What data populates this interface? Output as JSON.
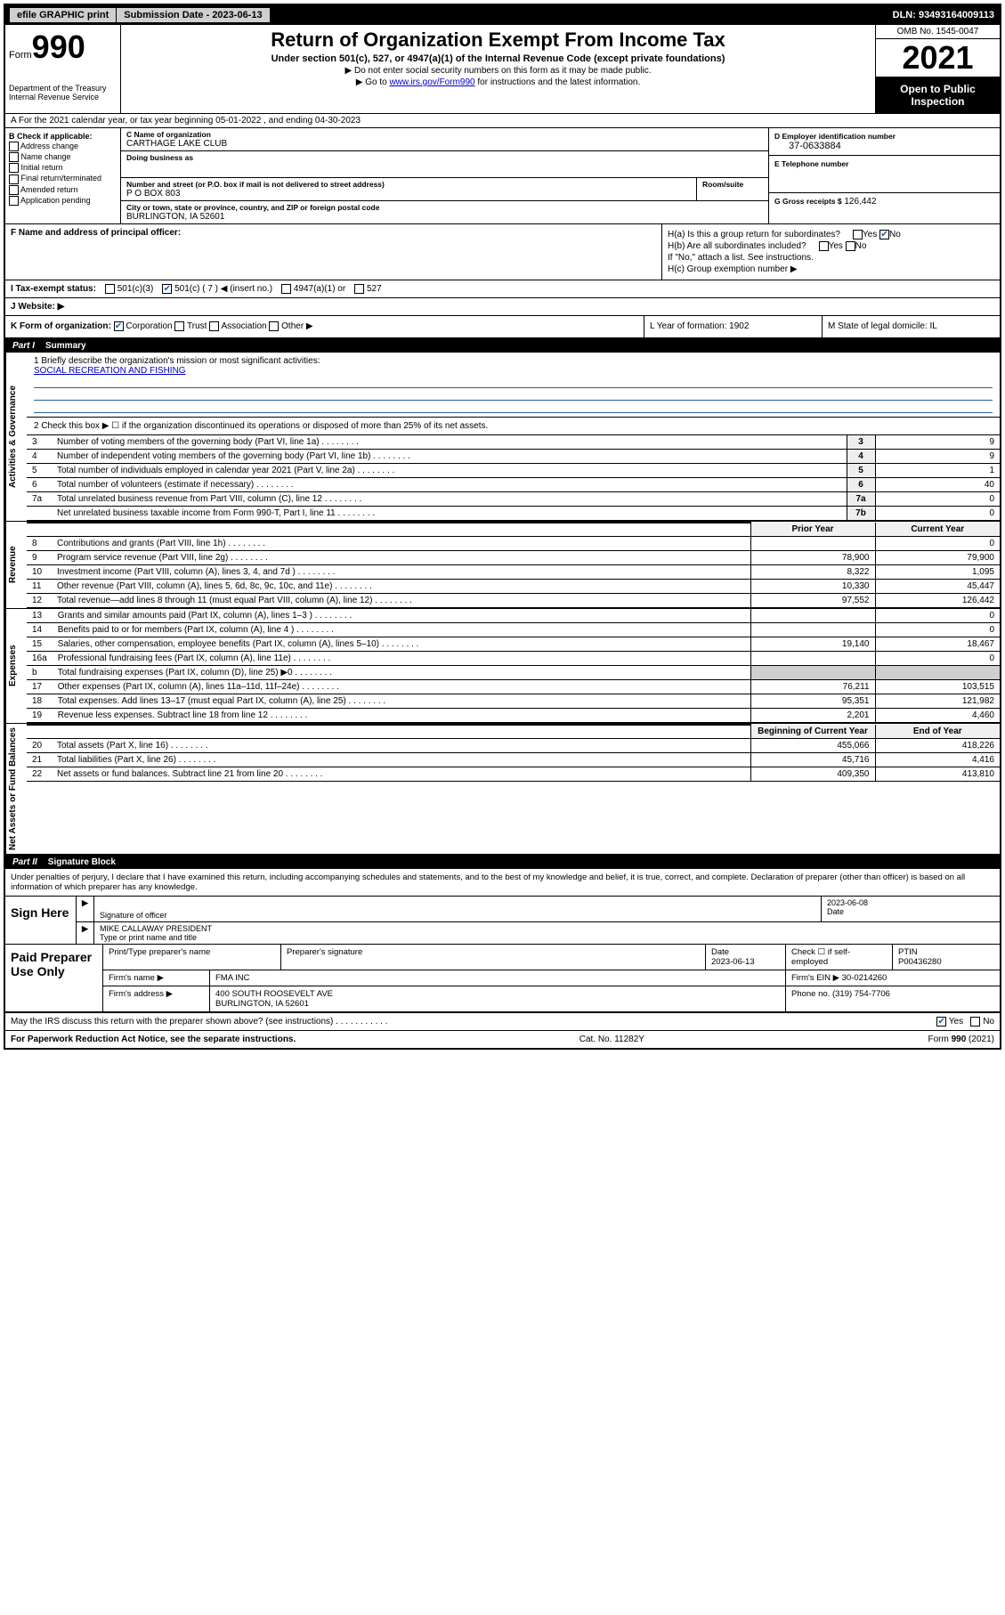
{
  "topbar": {
    "efile": "efile GRAPHIC print",
    "subdate_lbl": "Submission Date - 2023-06-13",
    "dln": "DLN: 93493164009113"
  },
  "header": {
    "form_word": "Form",
    "form_num": "990",
    "dept": "Department of the Treasury Internal Revenue Service",
    "title": "Return of Organization Exempt From Income Tax",
    "sub1": "Under section 501(c), 527, or 4947(a)(1) of the Internal Revenue Code (except private foundations)",
    "sub2": "▶ Do not enter social security numbers on this form as it may be made public.",
    "sub3_pre": "▶ Go to ",
    "sub3_link": "www.irs.gov/Form990",
    "sub3_post": " for instructions and the latest information.",
    "omb": "OMB No. 1545-0047",
    "year": "2021",
    "openpub": "Open to Public Inspection"
  },
  "row_a": "A For the 2021 calendar year, or tax year beginning 05-01-2022   , and ending 04-30-2023",
  "col_b": {
    "hdr": "B Check if applicable:",
    "items": [
      "Address change",
      "Name change",
      "Initial return",
      "Final return/terminated",
      "Amended return",
      "Application pending"
    ]
  },
  "col_c": {
    "name_lbl": "C Name of organization",
    "name": "CARTHAGE LAKE CLUB",
    "dba_lbl": "Doing business as",
    "dba": "",
    "street_lbl": "Number and street (or P.O. box if mail is not delivered to street address)",
    "street": "P O BOX 803",
    "room_lbl": "Room/suite",
    "city_lbl": "City or town, state or province, country, and ZIP or foreign postal code",
    "city": "BURLINGTON, IA  52601"
  },
  "col_de": {
    "d_lbl": "D Employer identification number",
    "d_val": "37-0633884",
    "e_lbl": "E Telephone number",
    "e_val": "",
    "g_lbl": "G Gross receipts $",
    "g_val": "126,442"
  },
  "fh": {
    "f_lbl": "F  Name and address of principal officer:",
    "ha": "H(a)  Is this a group return for subordinates?",
    "hb": "H(b)  Are all subordinates included?",
    "hb_note": "If \"No,\" attach a list. See instructions.",
    "hc": "H(c)  Group exemption number ▶",
    "yes": "Yes",
    "no": "No"
  },
  "status": {
    "i_lbl": "I  Tax-exempt status:",
    "opts": [
      "501(c)(3)",
      "501(c) ( 7 ) ◀ (insert no.)",
      "4947(a)(1) or",
      "527"
    ],
    "j_lbl": "J  Website: ▶"
  },
  "klm": {
    "k": "K Form of organization:",
    "k_opts": [
      "Corporation",
      "Trust",
      "Association",
      "Other ▶"
    ],
    "l": "L Year of formation: 1902",
    "m": "M State of legal domicile: IL"
  },
  "part1": {
    "label": "Part I",
    "title": "Summary",
    "mission_lbl": "1  Briefly describe the organization's mission or most significant activities:",
    "mission": "SOCIAL RECREATION AND FISHING",
    "line2": "2   Check this box ▶ ☐  if the organization discontinued its operations or disposed of more than 25% of its net assets.",
    "side_gov": "Activities & Governance",
    "side_rev": "Revenue",
    "side_exp": "Expenses",
    "side_net": "Net Assets or Fund Balances",
    "gov_rows": [
      {
        "n": "3",
        "d": "Number of voting members of the governing body (Part VI, line 1a)",
        "k": "3",
        "v": "9"
      },
      {
        "n": "4",
        "d": "Number of independent voting members of the governing body (Part VI, line 1b)",
        "k": "4",
        "v": "9"
      },
      {
        "n": "5",
        "d": "Total number of individuals employed in calendar year 2021 (Part V, line 2a)",
        "k": "5",
        "v": "1"
      },
      {
        "n": "6",
        "d": "Total number of volunteers (estimate if necessary)",
        "k": "6",
        "v": "40"
      },
      {
        "n": "7a",
        "d": "Total unrelated business revenue from Part VIII, column (C), line 12",
        "k": "7a",
        "v": "0"
      },
      {
        "n": "",
        "d": "Net unrelated business taxable income from Form 990-T, Part I, line 11",
        "k": "7b",
        "v": "0"
      }
    ],
    "two_col_hdr": {
      "prior": "Prior Year",
      "curr": "Current Year"
    },
    "rev_rows": [
      {
        "n": "8",
        "d": "Contributions and grants (Part VIII, line 1h)",
        "p": "",
        "c": "0"
      },
      {
        "n": "9",
        "d": "Program service revenue (Part VIII, line 2g)",
        "p": "78,900",
        "c": "79,900"
      },
      {
        "n": "10",
        "d": "Investment income (Part VIII, column (A), lines 3, 4, and 7d )",
        "p": "8,322",
        "c": "1,095"
      },
      {
        "n": "11",
        "d": "Other revenue (Part VIII, column (A), lines 5, 6d, 8c, 9c, 10c, and 11e)",
        "p": "10,330",
        "c": "45,447"
      },
      {
        "n": "12",
        "d": "Total revenue—add lines 8 through 11 (must equal Part VIII, column (A), line 12)",
        "p": "97,552",
        "c": "126,442"
      }
    ],
    "exp_rows": [
      {
        "n": "13",
        "d": "Grants and similar amounts paid (Part IX, column (A), lines 1–3 )",
        "p": "",
        "c": "0"
      },
      {
        "n": "14",
        "d": "Benefits paid to or for members (Part IX, column (A), line 4 )",
        "p": "",
        "c": "0"
      },
      {
        "n": "15",
        "d": "Salaries, other compensation, employee benefits (Part IX, column (A), lines 5–10)",
        "p": "19,140",
        "c": "18,467"
      },
      {
        "n": "16a",
        "d": "Professional fundraising fees (Part IX, column (A), line 11e)",
        "p": "",
        "c": "0"
      },
      {
        "n": "b",
        "d": "Total fundraising expenses (Part IX, column (D), line 25) ▶0",
        "p": "grey",
        "c": "grey"
      },
      {
        "n": "17",
        "d": "Other expenses (Part IX, column (A), lines 11a–11d, 11f–24e)",
        "p": "76,211",
        "c": "103,515"
      },
      {
        "n": "18",
        "d": "Total expenses. Add lines 13–17 (must equal Part IX, column (A), line 25)",
        "p": "95,351",
        "c": "121,982"
      },
      {
        "n": "19",
        "d": "Revenue less expenses. Subtract line 18 from line 12",
        "p": "2,201",
        "c": "4,460"
      }
    ],
    "net_hdr": {
      "beg": "Beginning of Current Year",
      "end": "End of Year"
    },
    "net_rows": [
      {
        "n": "20",
        "d": "Total assets (Part X, line 16)",
        "p": "455,066",
        "c": "418,226"
      },
      {
        "n": "21",
        "d": "Total liabilities (Part X, line 26)",
        "p": "45,716",
        "c": "4,416"
      },
      {
        "n": "22",
        "d": "Net assets or fund balances. Subtract line 21 from line 20",
        "p": "409,350",
        "c": "413,810"
      }
    ]
  },
  "part2": {
    "label": "Part II",
    "title": "Signature Block",
    "decl": "Under penalties of perjury, I declare that I have examined this return, including accompanying schedules and statements, and to the best of my knowledge and belief, it is true, correct, and complete. Declaration of preparer (other than officer) is based on all information of which preparer has any knowledge.",
    "sign_here": "Sign Here",
    "sig_officer": "Signature of officer",
    "sig_date": "2023-06-08",
    "date_lbl": "Date",
    "officer_name": "MIKE CALLAWAY PRESIDENT",
    "type_name": "Type or print name and title",
    "paid": "Paid Preparer Use Only",
    "prep_name_lbl": "Print/Type preparer's name",
    "prep_sig_lbl": "Preparer's signature",
    "prep_date_lbl": "Date",
    "prep_date": "2023-06-13",
    "check_self": "Check ☐ if self-employed",
    "ptin_lbl": "PTIN",
    "ptin": "P00436280",
    "firm_name_lbl": "Firm's name   ▶",
    "firm_name": "FMA INC",
    "firm_ein_lbl": "Firm's EIN ▶",
    "firm_ein": "30-0214260",
    "firm_addr_lbl": "Firm's address ▶",
    "firm_addr1": "400 SOUTH ROOSEVELT AVE",
    "firm_addr2": "BURLINGTON, IA  52601",
    "phone_lbl": "Phone no.",
    "phone": "(319) 754-7706",
    "discuss": "May the IRS discuss this return with the preparer shown above? (see instructions)",
    "yes": "Yes",
    "no": "No"
  },
  "footer": {
    "pra": "For Paperwork Reduction Act Notice, see the separate instructions.",
    "cat": "Cat. No. 11282Y",
    "form": "Form 990 (2021)"
  }
}
